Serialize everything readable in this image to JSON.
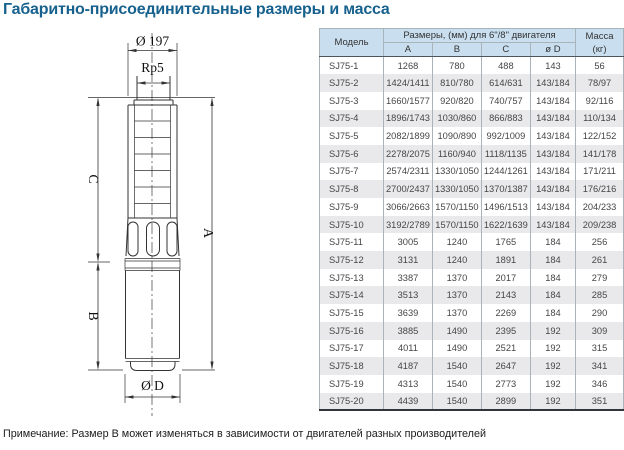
{
  "title": "Габаритно-присоединительные размеры и масса",
  "note": "Примечание: Размер B может изменяться в зависимости от двигателей разных производителей",
  "colors": {
    "title_accent": "#17618E",
    "table_header_bg": "#C9DFF0",
    "row_stripe": "#E9E9EC",
    "line_color": "#333333"
  },
  "drawing": {
    "labels": {
      "top_diameter": "Ø 197",
      "thread": "Rp5",
      "dim_c": "C",
      "dim_b": "B",
      "dim_a": "A",
      "bottom_diameter": "Ø D"
    }
  },
  "table": {
    "header": {
      "model": "Модель",
      "dims_group": "Размеры, (мм) для 6\"/8\" двигателя",
      "dim_cols": [
        "A",
        "B",
        "C",
        "ø D"
      ],
      "mass_line1": "Масса",
      "mass_line2": "(кг)"
    },
    "rows": [
      [
        "SJ75-1",
        "1268",
        "780",
        "488",
        "143",
        "56"
      ],
      [
        "SJ75-2",
        "1424/1411",
        "810/780",
        "614/631",
        "143/184",
        "78/97"
      ],
      [
        "SJ75-3",
        "1660/1577",
        "920/820",
        "740/757",
        "143/184",
        "92/116"
      ],
      [
        "SJ75-4",
        "1896/1743",
        "1030/860",
        "866/883",
        "143/184",
        "110/134"
      ],
      [
        "SJ75-5",
        "2082/1899",
        "1090/890",
        "992/1009",
        "143/184",
        "122/152"
      ],
      [
        "SJ75-6",
        "2278/2075",
        "1160/940",
        "1118/1135",
        "143/184",
        "141/178"
      ],
      [
        "SJ75-7",
        "2574/2311",
        "1330/1050",
        "1244/1261",
        "143/184",
        "171/211"
      ],
      [
        "SJ75-8",
        "2700/2437",
        "1330/1050",
        "1370/1387",
        "143/184",
        "176/216"
      ],
      [
        "SJ75-9",
        "3066/2663",
        "1570/1150",
        "1496/1513",
        "143/184",
        "204/233"
      ],
      [
        "SJ75-10",
        "3192/2789",
        "1570/1150",
        "1622/1639",
        "143/184",
        "209/238"
      ],
      [
        "SJ75-11",
        "3005",
        "1240",
        "1765",
        "184",
        "256"
      ],
      [
        "SJ75-12",
        "3131",
        "1240",
        "1891",
        "184",
        "261"
      ],
      [
        "SJ75-13",
        "3387",
        "1370",
        "2017",
        "184",
        "279"
      ],
      [
        "SJ75-14",
        "3513",
        "1370",
        "2143",
        "184",
        "285"
      ],
      [
        "SJ75-15",
        "3639",
        "1370",
        "2269",
        "184",
        "290"
      ],
      [
        "SJ75-16",
        "3885",
        "1490",
        "2395",
        "192",
        "309"
      ],
      [
        "SJ75-17",
        "4011",
        "1490",
        "2521",
        "192",
        "315"
      ],
      [
        "SJ75-18",
        "4187",
        "1540",
        "2647",
        "192",
        "341"
      ],
      [
        "SJ75-19",
        "4313",
        "1540",
        "2773",
        "192",
        "346"
      ],
      [
        "SJ75-20",
        "4439",
        "1540",
        "2899",
        "192",
        "351"
      ]
    ]
  }
}
